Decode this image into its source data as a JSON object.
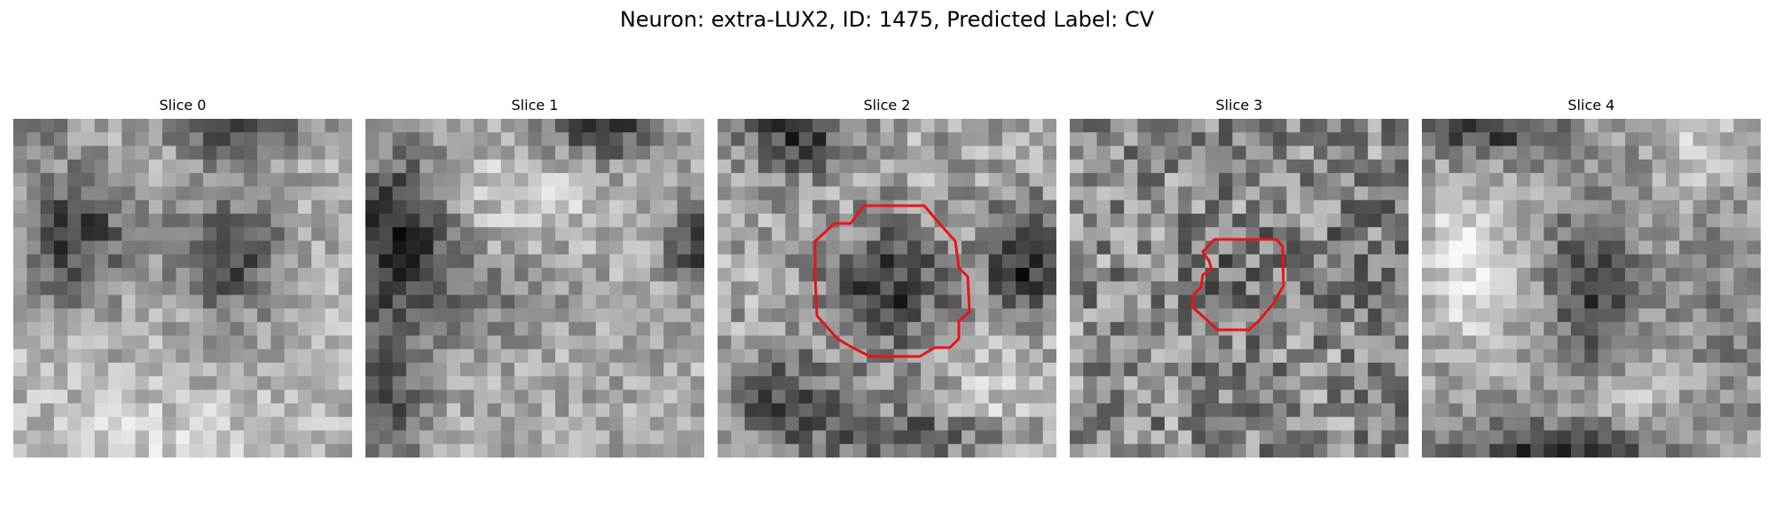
{
  "figure": {
    "title": "Neuron: extra-LUX2, ID: 1475, Predicted Label: CV"
  },
  "panels": [
    {
      "title": "Slice 0",
      "has_contour": false
    },
    {
      "title": "Slice 1",
      "has_contour": false
    },
    {
      "title": "Slice 2",
      "has_contour": true
    },
    {
      "title": "Slice 3",
      "has_contour": true
    },
    {
      "title": "Slice 4",
      "has_contour": false
    }
  ],
  "colors": {
    "contour": "#e8141a",
    "colormap": "gray"
  },
  "grid_size": 25
}
